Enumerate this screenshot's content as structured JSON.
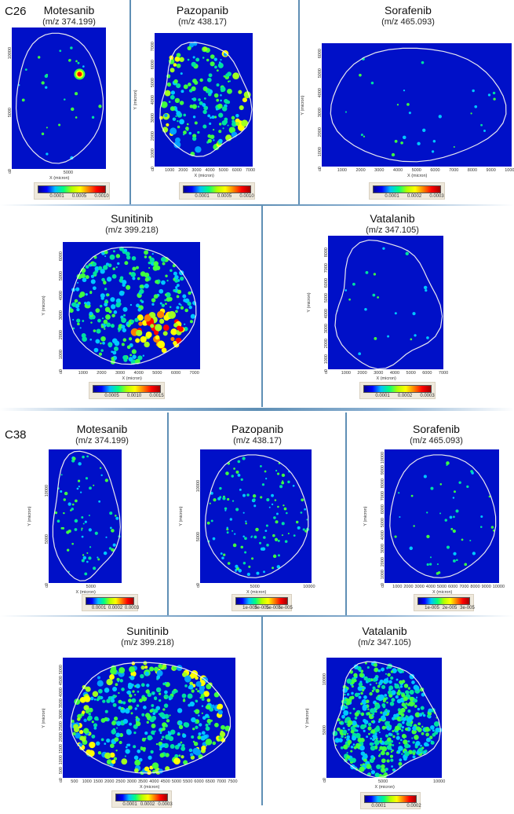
{
  "colors": {
    "background": "#0010c8",
    "outline": "#e8e8f0",
    "divider": "#5f8fb5",
    "colormap": "jet"
  },
  "chart_data": [
    {
      "type": "heatmap",
      "group": "C26",
      "title": "Motesanib",
      "mz": "(m/z 374.199)",
      "xlabel": "X (micron)",
      "ylabel": "Y (micron)",
      "xticks": [
        "0",
        "5000"
      ],
      "yticks": [
        "0",
        "5000",
        "10000"
      ],
      "xlim": [
        0,
        8600
      ],
      "ylim": [
        0,
        11600
      ],
      "colorbar": [
        "0.0001",
        "0.0005",
        "0.0010"
      ]
    },
    {
      "type": "heatmap",
      "group": "",
      "title": "Pazopanib",
      "mz": "(m/z 438.17)",
      "xlabel": "X (micron)",
      "ylabel": "Y (micron)",
      "xticks": [
        "0",
        "1000",
        "2000",
        "3000",
        "4000",
        "5000",
        "6000",
        "7000"
      ],
      "yticks": [
        "0",
        "1000",
        "2000",
        "3000",
        "4000",
        "5000",
        "6000",
        "7000"
      ],
      "xlim": [
        0,
        7300
      ],
      "ylim": [
        0,
        7500
      ],
      "colorbar": [
        "0.0001",
        "0.0005",
        "0.0010"
      ]
    },
    {
      "type": "heatmap",
      "group": "",
      "title": "Sorafenib",
      "mz": "(m/z 465.093)",
      "xlabel": "X (micron)",
      "ylabel": "Y (micron)",
      "xticks": [
        "0",
        "1000",
        "2000",
        "3000",
        "4000",
        "5000",
        "6000",
        "7000",
        "8000",
        "9000",
        "10000"
      ],
      "yticks": [
        "0",
        "1000",
        "2000",
        "3000",
        "4000",
        "5000",
        "6000"
      ],
      "xlim": [
        0,
        10200
      ],
      "ylim": [
        0,
        6300
      ],
      "colorbar": [
        "0.0001",
        "0.0002",
        "0.0003"
      ]
    },
    {
      "type": "heatmap",
      "group": "",
      "title": "Sunitinib",
      "mz": "(m/z 399.218)",
      "xlabel": "X (micron)",
      "ylabel": "Y (micron)",
      "xticks": [
        "0",
        "1000",
        "2000",
        "3000",
        "4000",
        "5000",
        "6000",
        "7000"
      ],
      "yticks": [
        "0",
        "1000",
        "2000",
        "3000",
        "4000",
        "5000",
        "6000"
      ],
      "xlim": [
        0,
        7400
      ],
      "ylim": [
        0,
        6500
      ],
      "colorbar": [
        "0.0005",
        "0.0010",
        "0.0015"
      ]
    },
    {
      "type": "heatmap",
      "group": "",
      "title": "Vatalanib",
      "mz": "(m/z 347.105)",
      "xlabel": "X (micron)",
      "ylabel": "Y (micron)",
      "xticks": [
        "0",
        "1000",
        "2000",
        "3000",
        "4000",
        "5000",
        "6000",
        "7000"
      ],
      "yticks": [
        "0",
        "1000",
        "2000",
        "3000",
        "4000",
        "5000",
        "6000",
        "7000",
        "8000"
      ],
      "xlim": [
        0,
        7100
      ],
      "ylim": [
        0,
        8800
      ],
      "colorbar": [
        "0.0001",
        "0.0002",
        "0.0003"
      ]
    },
    {
      "type": "heatmap",
      "group": "C38",
      "title": "Motesanib",
      "mz": "(m/z 374.199)",
      "xlabel": "X (micron)",
      "ylabel": "Y (micron)",
      "xticks": [
        "0",
        "5000"
      ],
      "yticks": [
        "0",
        "5000",
        "10000"
      ],
      "xlim": [
        0,
        9000
      ],
      "ylim": [
        0,
        13600
      ],
      "colorbar": [
        "0.0001",
        "0.0002",
        "0.0003"
      ]
    },
    {
      "type": "heatmap",
      "group": "",
      "title": "Pazopanib",
      "mz": "(m/z 438.17)",
      "xlabel": "X (micron)",
      "ylabel": "Y (micron)",
      "xticks": [
        "0",
        "5000",
        "10000"
      ],
      "yticks": [
        "0",
        "5000",
        "10000"
      ],
      "xlim": [
        0,
        10500
      ],
      "ylim": [
        0,
        13000
      ],
      "colorbar": [
        "1e-005",
        "3e-005",
        "5e-005",
        "7e-005"
      ]
    },
    {
      "type": "heatmap",
      "group": "",
      "title": "Sorafenib",
      "mz": "(m/z 465.093)",
      "xlabel": "X (micron)",
      "ylabel": "Y (micron)",
      "xticks": [
        "0",
        "1000",
        "2000",
        "3000",
        "4000",
        "5000",
        "6000",
        "7000",
        "8000",
        "9000",
        "10000"
      ],
      "yticks": [
        "0",
        "1000",
        "2000",
        "3000",
        "4000",
        "5000",
        "6000",
        "7000",
        "8000",
        "9000",
        "10000"
      ],
      "xlim": [
        0,
        10300
      ],
      "ylim": [
        0,
        10200
      ],
      "colorbar": [
        "1e-005",
        "2e-005",
        "3e-005"
      ]
    },
    {
      "type": "heatmap",
      "group": "",
      "title": "Sunitinib",
      "mz": "(m/z 399.218)",
      "xlabel": "X (micron)",
      "ylabel": "Y (micron)",
      "xticks": [
        "0",
        "500",
        "1000",
        "1500",
        "2000",
        "2500",
        "3000",
        "3500",
        "4000",
        "4500",
        "5000",
        "5500",
        "6000",
        "6500",
        "7000",
        "7500"
      ],
      "yticks": [
        "0",
        "500",
        "1000",
        "1500",
        "2000",
        "2500",
        "3000",
        "3500",
        "4000",
        "4500",
        "5000"
      ],
      "xlim": [
        0,
        7700
      ],
      "ylim": [
        0,
        5300
      ],
      "colorbar": [
        "0.0001",
        "0.0002",
        "0.0003"
      ]
    },
    {
      "type": "heatmap",
      "group": "",
      "title": "Vatalanib",
      "mz": "(m/z 347.105)",
      "xlabel": "X (micron)",
      "ylabel": "Y (micron)",
      "xticks": [
        "0",
        "5000",
        "10000"
      ],
      "yticks": [
        "0",
        "5000",
        "10000"
      ],
      "xlim": [
        0,
        10500
      ],
      "ylim": [
        0,
        11500
      ],
      "colorbar": [
        "0.0001",
        "0.0002"
      ]
    }
  ]
}
